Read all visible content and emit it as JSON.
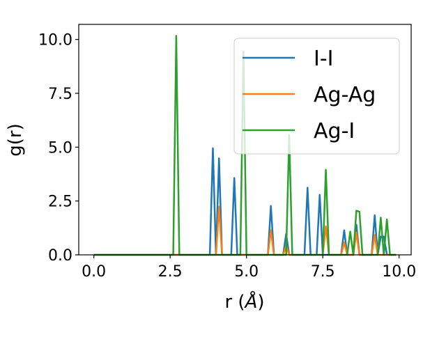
{
  "chart_data": {
    "type": "line",
    "title": "",
    "xlabel_prefix": "r (",
    "xlabel_unit": "Å",
    "xlabel_suffix": ")",
    "ylabel": "g(r)",
    "xlim": [
      -0.495,
      10.395
    ],
    "ylim": [
      0,
      10.7
    ],
    "grid": false,
    "legend_position": "top-right",
    "x_grid": {
      "start": 0.0,
      "stop": 9.9,
      "step": 0.1
    },
    "x_ticks": [
      0.0,
      2.5,
      5.0,
      7.5,
      10.0
    ],
    "x_tick_labels": [
      "0.0",
      "2.5",
      "5.0",
      "7.5",
      "10.0"
    ],
    "y_ticks": [
      0.0,
      2.5,
      5.0,
      7.5,
      10.0
    ],
    "y_tick_labels": [
      "0.0",
      "2.5",
      "5.0",
      "7.5",
      "10.0"
    ],
    "series": [
      {
        "name": "I-I",
        "color": "#1f77b4",
        "nonzero_points": [
          [
            3.9,
            4.95
          ],
          [
            4.1,
            4.48
          ],
          [
            4.6,
            3.57
          ],
          [
            5.8,
            2.27
          ],
          [
            6.3,
            0.97
          ],
          [
            7.0,
            3.12
          ],
          [
            7.4,
            2.79
          ],
          [
            8.2,
            1.14
          ],
          [
            8.6,
            1.4
          ],
          [
            9.2,
            1.84
          ],
          [
            9.4,
            0.85
          ],
          [
            9.5,
            0.85
          ]
        ]
      },
      {
        "name": "Ag-Ag",
        "color": "#ff7f0e",
        "nonzero_points": [
          [
            4.1,
            2.24
          ],
          [
            5.8,
            1.14
          ],
          [
            6.3,
            0.43
          ],
          [
            7.6,
            1.33
          ],
          [
            8.2,
            0.58
          ],
          [
            8.6,
            1.04
          ],
          [
            9.2,
            0.92
          ]
        ]
      },
      {
        "name": "Ag-I",
        "color": "#2ca02c",
        "nonzero_points": [
          [
            2.7,
            10.17
          ],
          [
            4.9,
            9.45
          ],
          [
            6.4,
            5.57
          ],
          [
            7.6,
            3.95
          ],
          [
            8.4,
            1.08
          ],
          [
            8.6,
            2.05
          ],
          [
            8.7,
            2.0
          ],
          [
            9.4,
            1.73
          ],
          [
            9.6,
            1.65
          ]
        ]
      }
    ]
  }
}
